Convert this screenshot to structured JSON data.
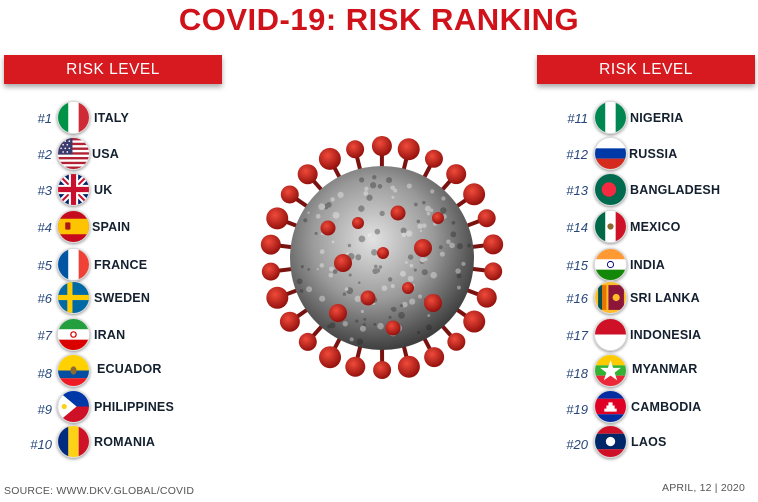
{
  "title": "COVID-19: RISK RANKING",
  "left_panel": {
    "header": "RISK LEVEL",
    "items": [
      {
        "rank": "#1",
        "country": "ITALY",
        "flag": "italy-flag"
      },
      {
        "rank": "#2",
        "country": "USA",
        "flag": "usa-flag"
      },
      {
        "rank": "#3",
        "country": "UK",
        "flag": "uk-flag"
      },
      {
        "rank": "#4",
        "country": "SPAIN",
        "flag": "spain-flag"
      },
      {
        "rank": "#5",
        "country": "FRANCE",
        "flag": "france-flag"
      },
      {
        "rank": "#6",
        "country": "SWEDEN",
        "flag": "sweden-flag"
      },
      {
        "rank": "#7",
        "country": "IRAN",
        "flag": "iran-flag"
      },
      {
        "rank": "#8",
        "country": "ECUADOR",
        "flag": "ecuador-flag"
      },
      {
        "rank": "#9",
        "country": "PHILIPPINES",
        "flag": "philippines-flag"
      },
      {
        "rank": "#10",
        "country": "ROMANIA",
        "flag": "romania-flag"
      }
    ]
  },
  "right_panel": {
    "header": "RISK LEVEL",
    "items": [
      {
        "rank": "#11",
        "country": "NIGERIA",
        "flag": "nigeria-flag"
      },
      {
        "rank": "#12",
        "country": "RUSSIA",
        "flag": "russia-flag"
      },
      {
        "rank": "#13",
        "country": "BANGLADESH",
        "flag": "bangladesh-flag"
      },
      {
        "rank": "#14",
        "country": "MEXICO",
        "flag": "mexico-flag"
      },
      {
        "rank": "#15",
        "country": "INDIA",
        "flag": "india-flag"
      },
      {
        "rank": "#16",
        "country": "SRI LANKA",
        "flag": "sri-lanka-flag"
      },
      {
        "rank": "#17",
        "country": "INDONESIA",
        "flag": "indonesia-flag"
      },
      {
        "rank": "#18",
        "country": "MYANMAR",
        "flag": "myanmar-flag"
      },
      {
        "rank": "#19",
        "country": "CAMBODIA",
        "flag": "cambodia-flag"
      },
      {
        "rank": "#20",
        "country": "LAOS",
        "flag": "laos-flag"
      }
    ]
  },
  "footer": {
    "source": "SOURCE: WWW.DKV.GLOBAL/COVID",
    "date": "APRIL, 12 | 2020"
  },
  "colors": {
    "title": "#d0121b",
    "banner": "#d71920",
    "rank": "#27477a",
    "country": "#14202f"
  },
  "image": "coronavirus-illustration"
}
